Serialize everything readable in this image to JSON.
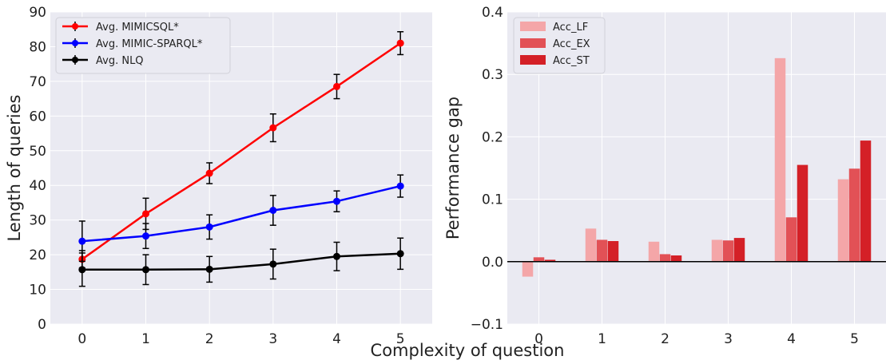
{
  "shared_xlabel": "Complexity of question",
  "chart_data": [
    {
      "type": "line",
      "xlabel": "",
      "ylabel": "Length of queries",
      "x": [
        0,
        1,
        2,
        3,
        4,
        5
      ],
      "xlim": [
        -0.5,
        5.5
      ],
      "ylim": [
        0,
        90
      ],
      "yticks": [
        0,
        10,
        20,
        30,
        40,
        50,
        60,
        70,
        80,
        90
      ],
      "grid": true,
      "legend_position": "top-left",
      "series": [
        {
          "name": "Avg. MIMICSQL*",
          "color": "#ff0000",
          "values": [
            18.7,
            31.8,
            43.5,
            56.6,
            68.5,
            81.0
          ],
          "errors": [
            2.5,
            4.5,
            3.0,
            4.0,
            3.5,
            3.3
          ]
        },
        {
          "name": "Avg. MIMIC-SPARQL*",
          "color": "#0000ff",
          "values": [
            23.9,
            25.4,
            28.0,
            32.8,
            35.4,
            39.8
          ],
          "errors": [
            5.8,
            3.6,
            3.5,
            4.3,
            3.0,
            3.2
          ]
        },
        {
          "name": "Avg. NLQ",
          "color": "#000000",
          "values": [
            15.7,
            15.7,
            15.8,
            17.3,
            19.5,
            20.3
          ],
          "errors": [
            4.8,
            4.3,
            3.7,
            4.3,
            4.1,
            4.5
          ]
        }
      ]
    },
    {
      "type": "bar",
      "xlabel": "",
      "ylabel": "Performance gap",
      "categories": [
        "0",
        "1",
        "2",
        "3",
        "4",
        "5"
      ],
      "ylim": [
        -0.1,
        0.4
      ],
      "yticks": [
        "−0.1",
        "0.0",
        "0.1",
        "0.2",
        "0.3",
        "0.4"
      ],
      "ytick_values": [
        -0.1,
        0.0,
        0.1,
        0.2,
        0.3,
        0.4
      ],
      "grid": true,
      "legend_position": "top-left",
      "series": [
        {
          "name": "Acc_LF",
          "color": "#f4a6a8",
          "values": [
            -0.024,
            0.053,
            0.032,
            0.035,
            0.326,
            0.132
          ]
        },
        {
          "name": "Acc_EX",
          "color": "#e25156",
          "values": [
            0.007,
            0.035,
            0.012,
            0.034,
            0.071,
            0.149
          ]
        },
        {
          "name": "Acc_ST",
          "color": "#d42027",
          "values": [
            0.003,
            0.033,
            0.01,
            0.038,
            0.155,
            0.194
          ]
        }
      ]
    }
  ]
}
